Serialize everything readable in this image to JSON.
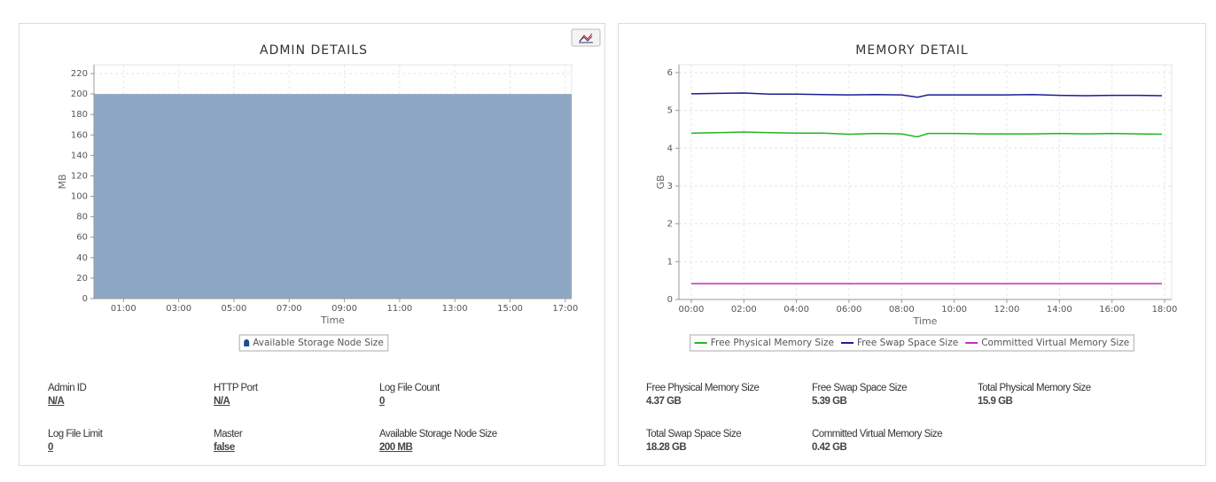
{
  "chart_data": [
    {
      "type": "area",
      "title": "ADMIN DETAILS",
      "y_label": "MB",
      "x_label": "Time",
      "x": [
        -0.07,
        17.23
      ],
      "series": [
        {
          "name": "Available Storage Node Size",
          "color": "#8ca5c3",
          "values": [
            200,
            200
          ]
        }
      ],
      "xlim": [
        -0.07,
        17.23
      ],
      "xticks": [
        {
          "value": 1,
          "label": "01:00"
        },
        {
          "value": 3,
          "label": "03:00"
        },
        {
          "value": 5,
          "label": "05:00"
        },
        {
          "value": 7,
          "label": "07:00"
        },
        {
          "value": 9,
          "label": "09:00"
        },
        {
          "value": 11,
          "label": "11:00"
        },
        {
          "value": 13,
          "label": "13:00"
        },
        {
          "value": 15,
          "label": "15:00"
        },
        {
          "value": 17,
          "label": "17:00"
        }
      ],
      "ylim": [
        0,
        228.7
      ],
      "yticks": [
        0,
        20,
        40,
        60,
        80,
        100,
        120,
        140,
        160,
        180,
        200,
        220
      ],
      "grid": true
    },
    {
      "type": "line",
      "title": "MEMORY DETAIL",
      "y_label": "GB",
      "x_label": "Time",
      "x": [
        0,
        1,
        2,
        3,
        4,
        5,
        6,
        7,
        8,
        8.6,
        9,
        10,
        11,
        12,
        13,
        14,
        15,
        16,
        17,
        17.9
      ],
      "series": [
        {
          "name": "Free Physical Memory Size",
          "color": "#22b522",
          "values": [
            4.4,
            4.41,
            4.43,
            4.41,
            4.4,
            4.4,
            4.37,
            4.39,
            4.38,
            4.3,
            4.39,
            4.39,
            4.38,
            4.38,
            4.38,
            4.39,
            4.38,
            4.39,
            4.38,
            4.37
          ]
        },
        {
          "name": "Free Swap Space Size",
          "color": "#1c1c96",
          "values": [
            5.44,
            5.45,
            5.46,
            5.43,
            5.43,
            5.42,
            5.41,
            5.42,
            5.41,
            5.35,
            5.41,
            5.41,
            5.41,
            5.41,
            5.42,
            5.4,
            5.39,
            5.4,
            5.4,
            5.39
          ]
        },
        {
          "name": "Committed Virtual Memory Size",
          "color": "#c22ec2",
          "values": [
            0.42,
            0.42,
            0.42,
            0.42,
            0.42,
            0.42,
            0.42,
            0.42,
            0.42,
            0.42,
            0.42,
            0.42,
            0.42,
            0.42,
            0.42,
            0.42,
            0.42,
            0.42,
            0.42,
            0.42
          ]
        }
      ],
      "xlim": [
        -0.47,
        18.27
      ],
      "xticks": [
        {
          "value": 0,
          "label": "00:00"
        },
        {
          "value": 2,
          "label": "02:00"
        },
        {
          "value": 4,
          "label": "04:00"
        },
        {
          "value": 6,
          "label": "06:00"
        },
        {
          "value": 8,
          "label": "08:00"
        },
        {
          "value": 10,
          "label": "10:00"
        },
        {
          "value": 12,
          "label": "12:00"
        },
        {
          "value": 14,
          "label": "14:00"
        },
        {
          "value": 16,
          "label": "16:00"
        },
        {
          "value": 18,
          "label": "18:00"
        }
      ],
      "ylim": [
        0,
        6.21
      ],
      "yticks": [
        0,
        1,
        2,
        3,
        4,
        5,
        6
      ],
      "grid": true
    }
  ],
  "admin_details": {
    "rows": [
      [
        {
          "label": "Admin ID",
          "value": "N/A"
        },
        {
          "label": "HTTP Port",
          "value": "N/A"
        },
        {
          "label": "Log File Count",
          "value": "0"
        }
      ],
      [
        {
          "label": "Log File Limit",
          "value": "0"
        },
        {
          "label": "Master",
          "value": "false"
        },
        {
          "label": "Available Storage Node Size",
          "value": "200 MB"
        }
      ]
    ]
  },
  "memory_details": {
    "rows": [
      [
        {
          "label": "Free Physical Memory Size",
          "value": "4.37 GB"
        },
        {
          "label": "Free Swap Space Size",
          "value": "5.39 GB"
        },
        {
          "label": "Total Physical Memory Size",
          "value": "15.9 GB"
        }
      ],
      [
        {
          "label": "Total Swap Space Size",
          "value": "18.28 GB"
        },
        {
          "label": "Committed Virtual Memory Size",
          "value": "0.42 GB"
        }
      ]
    ]
  }
}
